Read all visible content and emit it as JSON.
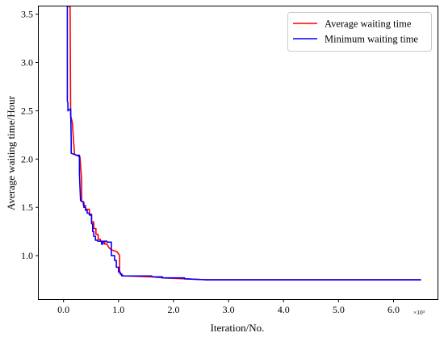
{
  "chart_data": {
    "type": "line",
    "title": "",
    "xlabel": "Iteration/No.",
    "ylabel": "Average waiting time/Hour",
    "x_multiplier": "×10³",
    "xlim": [
      -0.45,
      6.8
    ],
    "ylim": [
      0.55,
      3.58
    ],
    "xticks": [
      0.0,
      1.0,
      2.0,
      3.0,
      4.0,
      5.0,
      6.0
    ],
    "xtick_labels": [
      "0.0",
      "1.0",
      "2.0",
      "3.0",
      "4.0",
      "5.0",
      "6.0"
    ],
    "yticks": [
      1.0,
      1.5,
      2.0,
      2.5,
      3.0,
      3.5
    ],
    "ytick_labels": [
      "1.0",
      "1.5",
      "2.0",
      "2.5",
      "3.0",
      "3.5"
    ],
    "grid": false,
    "legend_position": "upper-right",
    "series": [
      {
        "name": "Average waiting time",
        "color": "#ff0000",
        "x": [
          0.08,
          0.09,
          0.12,
          0.13,
          0.16,
          0.2,
          0.3,
          0.33,
          0.33,
          0.36,
          0.36,
          0.4,
          0.4,
          0.47,
          0.47,
          0.51,
          0.51,
          0.55,
          0.55,
          0.59,
          0.59,
          0.63,
          0.63,
          0.67,
          0.67,
          0.71,
          0.71,
          0.75,
          0.75,
          0.79,
          0.83,
          0.87,
          0.93,
          0.97,
          1.0,
          1.02,
          1.02,
          1.05,
          1.1,
          1.6,
          1.62,
          1.8,
          1.8,
          2.2,
          2.2,
          2.6,
          6.5
        ],
        "y": [
          3.58,
          3.58,
          3.58,
          2.45,
          2.38,
          2.05,
          2.02,
          1.78,
          1.56,
          1.56,
          1.52,
          1.52,
          1.48,
          1.48,
          1.43,
          1.43,
          1.35,
          1.35,
          1.28,
          1.28,
          1.22,
          1.22,
          1.17,
          1.17,
          1.15,
          1.15,
          1.14,
          1.14,
          1.12,
          1.12,
          1.08,
          1.06,
          1.05,
          1.04,
          1.02,
          1.0,
          0.84,
          0.8,
          0.79,
          0.78,
          0.78,
          0.77,
          0.77,
          0.76,
          0.76,
          0.75,
          0.75
        ]
      },
      {
        "name": "Minimum waiting time",
        "color": "#0000ff",
        "x": [
          0.07,
          0.07,
          0.08,
          0.08,
          0.13,
          0.14,
          0.14,
          0.24,
          0.26,
          0.29,
          0.29,
          0.3,
          0.31,
          0.31,
          0.37,
          0.37,
          0.4,
          0.4,
          0.43,
          0.43,
          0.47,
          0.47,
          0.51,
          0.51,
          0.53,
          0.53,
          0.55,
          0.55,
          0.58,
          0.58,
          0.62,
          0.62,
          0.65,
          0.65,
          0.69,
          0.69,
          0.72,
          0.72,
          0.79,
          0.79,
          0.87,
          0.87,
          0.93,
          0.93,
          0.96,
          0.96,
          1.0,
          1.0,
          1.03,
          1.03,
          1.06,
          1.06,
          1.6,
          1.62,
          1.8,
          1.8,
          2.2,
          2.2,
          2.6,
          6.5
        ],
        "y": [
          3.58,
          2.6,
          2.58,
          2.5,
          2.52,
          2.2,
          2.06,
          2.04,
          2.04,
          2.04,
          1.85,
          1.7,
          1.57,
          1.57,
          1.55,
          1.5,
          1.5,
          1.47,
          1.47,
          1.44,
          1.44,
          1.42,
          1.42,
          1.33,
          1.33,
          1.25,
          1.25,
          1.2,
          1.2,
          1.16,
          1.16,
          1.15,
          1.15,
          1.15,
          1.15,
          1.12,
          1.12,
          1.15,
          1.15,
          1.14,
          1.14,
          1.0,
          1.0,
          0.95,
          0.95,
          0.88,
          0.88,
          0.83,
          0.83,
          0.81,
          0.81,
          0.79,
          0.79,
          0.78,
          0.78,
          0.77,
          0.77,
          0.76,
          0.75,
          0.75
        ]
      }
    ]
  }
}
